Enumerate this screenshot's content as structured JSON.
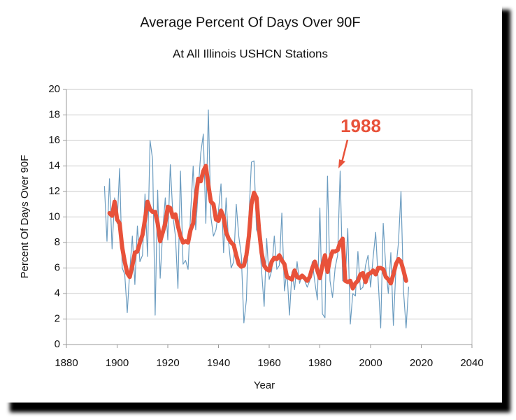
{
  "chart_data": {
    "type": "line",
    "title": "Average Percent Of Days Over 90F",
    "subtitle": "At All Illinois USHCN Stations",
    "x_label": "Year",
    "y_label": "Percent Of Days Over 90F",
    "x": [
      1895,
      1896,
      1897,
      1898,
      1899,
      1900,
      1901,
      1902,
      1903,
      1904,
      1905,
      1906,
      1907,
      1908,
      1909,
      1910,
      1911,
      1912,
      1913,
      1914,
      1915,
      1916,
      1917,
      1918,
      1919,
      1920,
      1921,
      1922,
      1923,
      1924,
      1925,
      1926,
      1927,
      1928,
      1929,
      1930,
      1931,
      1932,
      1933,
      1934,
      1935,
      1936,
      1937,
      1938,
      1939,
      1940,
      1941,
      1942,
      1943,
      1944,
      1945,
      1946,
      1947,
      1948,
      1949,
      1950,
      1951,
      1952,
      1953,
      1954,
      1955,
      1956,
      1957,
      1958,
      1959,
      1960,
      1961,
      1962,
      1963,
      1964,
      1965,
      1966,
      1967,
      1968,
      1969,
      1970,
      1971,
      1972,
      1973,
      1974,
      1975,
      1976,
      1977,
      1978,
      1979,
      1980,
      1981,
      1982,
      1983,
      1984,
      1985,
      1986,
      1987,
      1988,
      1989,
      1990,
      1991,
      1992,
      1993,
      1994,
      1995,
      1996,
      1997,
      1998,
      1999,
      2000,
      2001,
      2002,
      2003,
      2004,
      2005,
      2006,
      2007,
      2008,
      2009,
      2010,
      2011,
      2012,
      2013,
      2014,
      2015
    ],
    "series": [
      {
        "color": "#6b9cc0",
        "width": 1.2,
        "values": [
          12.4,
          8.1,
          13.0,
          7.5,
          11.5,
          9.5,
          13.8,
          6.0,
          5.5,
          2.5,
          5.8,
          8.5,
          4.7,
          9.3,
          6.5,
          7.0,
          11.8,
          6.9,
          16.0,
          14.5,
          2.3,
          12.1,
          5.2,
          9.0,
          11.5,
          8.2,
          14.1,
          10.1,
          8.5,
          4.4,
          13.6,
          6.3,
          6.6,
          5.9,
          10.3,
          14.0,
          9.0,
          12.1,
          15.0,
          16.5,
          9.5,
          18.4,
          10.0,
          8.5,
          9.0,
          10.5,
          12.6,
          7.2,
          11.5,
          8.0,
          6.0,
          6.5,
          11.0,
          8.5,
          7.0,
          1.7,
          3.5,
          10.0,
          14.3,
          14.4,
          9.0,
          8.5,
          5.8,
          3.0,
          8.3,
          5.1,
          5.8,
          8.5,
          5.9,
          6.2,
          10.3,
          4.2,
          5.8,
          2.3,
          5.7,
          4.3,
          6.5,
          4.8,
          5.5,
          5.0,
          4.5,
          5.0,
          6.5,
          4.9,
          3.5,
          10.7,
          2.4,
          2.1,
          13.2,
          5.0,
          3.7,
          6.0,
          7.0,
          13.6,
          5.0,
          5.0,
          9.1,
          1.6,
          4.0,
          3.8,
          7.3,
          4.3,
          4.5,
          6.2,
          7.0,
          4.5,
          6.8,
          8.8,
          5.0,
          1.3,
          9.5,
          6.0,
          4.0,
          7.2,
          1.5,
          6.0,
          8.0,
          12.0,
          4.2,
          1.3,
          4.5
        ]
      },
      {
        "color": "#e8523a",
        "width": 6,
        "values": [
          null,
          null,
          10.3,
          10.1,
          11.2,
          9.8,
          9.5,
          7.6,
          6.5,
          5.6,
          5.3,
          6.2,
          7.2,
          7.3,
          8.0,
          8.6,
          9.8,
          11.2,
          10.6,
          10.4,
          10.4,
          9.5,
          8.1,
          8.8,
          9.5,
          10.8,
          10.7,
          10.0,
          10.2,
          9.3,
          8.5,
          8.0,
          8.1,
          8.0,
          9.0,
          9.5,
          11.5,
          13.0,
          12.8,
          13.6,
          14.0,
          12.5,
          11.2,
          11.0,
          9.8,
          9.7,
          10.5,
          10.0,
          8.8,
          8.3,
          8.0,
          7.8,
          7.0,
          6.3,
          6.1,
          6.2,
          7.0,
          8.5,
          11.0,
          11.9,
          11.5,
          9.0,
          7.2,
          6.2,
          5.9,
          5.8,
          6.5,
          6.8,
          6.7,
          7.0,
          6.6,
          6.3,
          5.3,
          5.2,
          5.1,
          5.8,
          5.3,
          5.2,
          5.4,
          5.2,
          5.0,
          5.3,
          6.0,
          6.5,
          5.8,
          5.2,
          6.2,
          7.0,
          5.7,
          6.7,
          7.3,
          7.3,
          7.4,
          8.0,
          8.3,
          5.0,
          4.9,
          5.0,
          4.4,
          4.8,
          5.0,
          5.5,
          5.6,
          4.9,
          5.5,
          5.6,
          5.8,
          5.5,
          6.0,
          6.0,
          5.9,
          5.3,
          5.1,
          4.8,
          5.5,
          6.3,
          6.7,
          6.5,
          5.8,
          5.0,
          null
        ]
      }
    ],
    "xlim": [
      1880,
      2040
    ],
    "xticks": [
      1880,
      1900,
      1920,
      1940,
      1960,
      1980,
      2000,
      2020,
      2040
    ],
    "ylim": [
      0,
      20
    ],
    "yticks": [
      0,
      2,
      4,
      6,
      8,
      10,
      12,
      14,
      16,
      18,
      20
    ],
    "grid": true,
    "annotation": {
      "text": "1988"
    }
  }
}
